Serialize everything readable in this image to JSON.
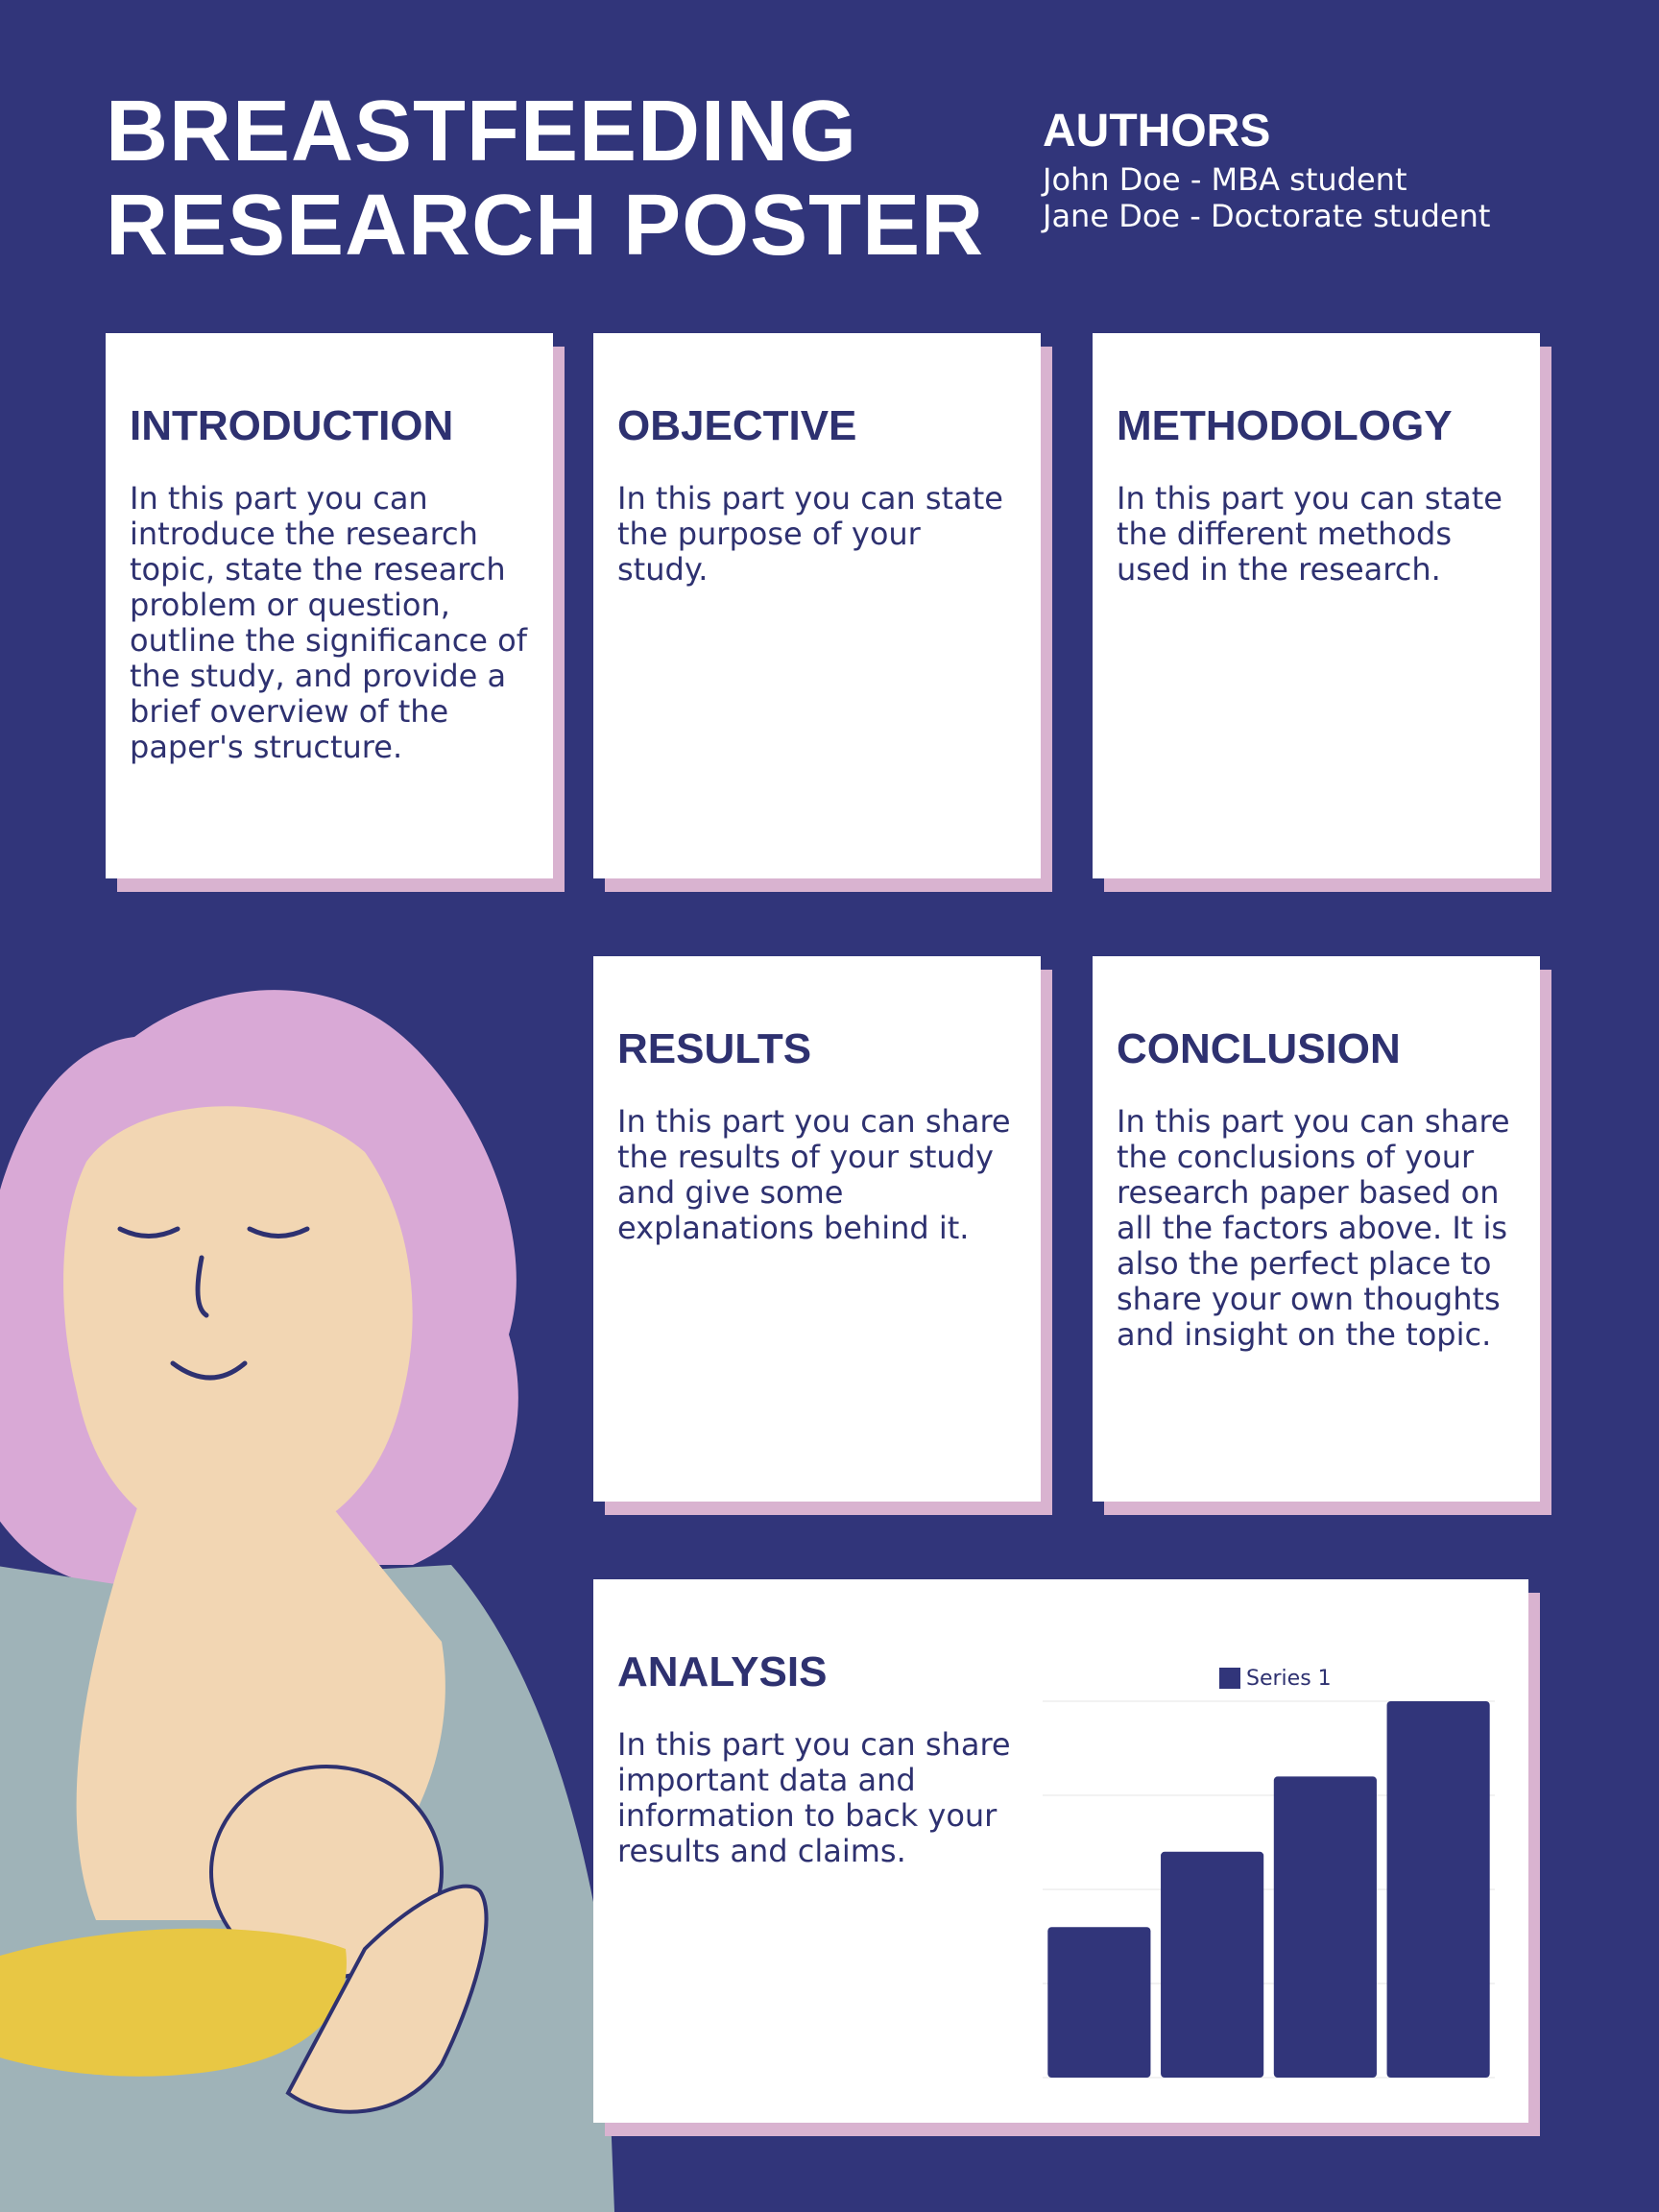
{
  "header": {
    "title": "BREASTFEEDING RESEARCH POSTER",
    "authors_heading": "AUTHORS",
    "authors": [
      "John Doe - MBA student",
      "Jane Doe - Doctorate student"
    ]
  },
  "sections": [
    {
      "heading": "INTRODUCTION",
      "text": "In this part you can introduce the research topic, state the research problem or question, outline the significance of the study, and provide a brief overview of the paper's structure."
    },
    {
      "heading": "OBJECTIVE",
      "text": "In this part you can state the purpose of your study."
    },
    {
      "heading": "METHODOLOGY",
      "text": "In this part you can state the different methods used in the research."
    },
    {
      "heading": "RESULTS",
      "text": "In this part you can share the results of your study and give some explanations behind it."
    },
    {
      "heading": "CONCLUSION",
      "text": "In this part you can share the conclusions of your research paper based on all the factors above. It is also the perfect place to share your own thoughts and insight on the topic."
    },
    {
      "heading": "ANALYSIS",
      "text": "In this part you can share important data and information to back your results and claims."
    }
  ],
  "chart_data": {
    "type": "bar",
    "categories": [
      null,
      null,
      null,
      null
    ],
    "series": [
      {
        "name": "Series 1",
        "color": "#31357a",
        "values": [
          1.6,
          2.4,
          3.2,
          4
        ]
      }
    ],
    "ylim": [
      0,
      4
    ],
    "yticks": [
      0,
      1,
      2,
      3,
      4
    ],
    "grid": true
  }
}
